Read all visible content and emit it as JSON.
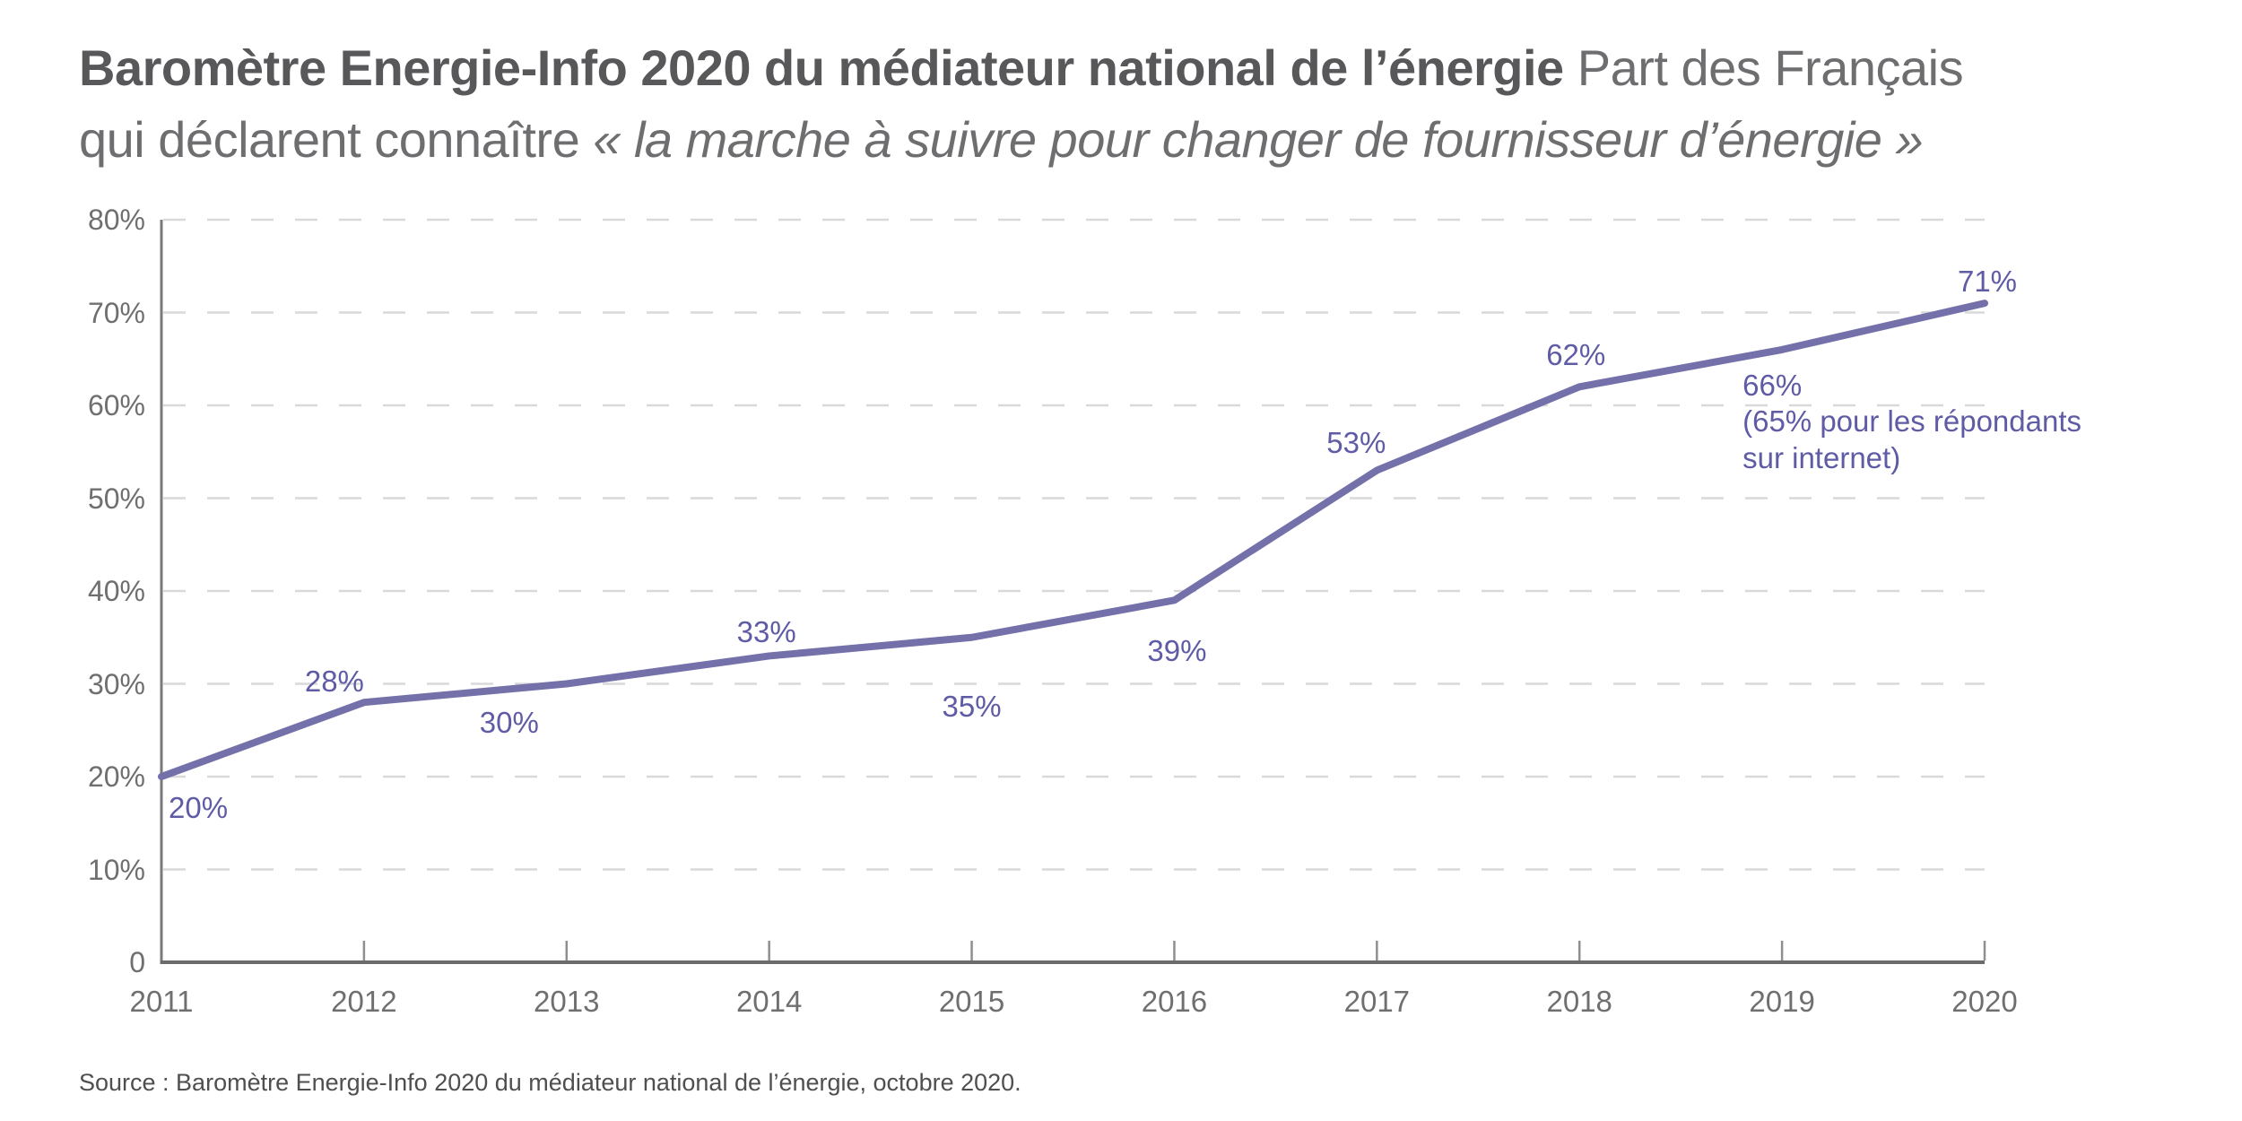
{
  "title": {
    "bold": "Baromètre Energie-Info 2020 du médiateur national de l’énergie",
    "regular_a": "Part des Français",
    "regular_b": "qui déclarent connaître",
    "italic_quote": "« la marche à suivre pour changer de fournisseur d’énergie »"
  },
  "source": "Source : Baromètre Energie-Info 2020 du médiateur national de l’énergie, octobre 2020.",
  "chart_data": {
    "type": "line",
    "x": [
      2011,
      2012,
      2013,
      2014,
      2015,
      2016,
      2017,
      2018,
      2019,
      2020
    ],
    "xlabels": [
      "2011",
      "2012",
      "2013",
      "2014",
      "2015",
      "2016",
      "2017",
      "2018",
      "2019",
      "2020"
    ],
    "values": [
      20,
      28,
      30,
      33,
      35,
      39,
      53,
      62,
      66,
      71
    ],
    "point_labels": [
      "20%",
      "28%",
      "30%",
      "33%",
      "35%",
      "39%",
      "53%",
      "62%",
      "66%",
      "71%"
    ],
    "annotation_2019": "(65% pour les répondants\nsur internet)",
    "ylim": [
      0,
      80
    ],
    "yticks": [
      80,
      70,
      60,
      50,
      40,
      30,
      20,
      10,
      0
    ],
    "ytick_labels": [
      "80%",
      "70%",
      "60%",
      "50%",
      "40%",
      "30%",
      "20%",
      "10%",
      "0"
    ],
    "grid": "horizontal-dashed",
    "legend": "none",
    "colors": {
      "line": "#7470AA",
      "point_labels": "#5F5BA5",
      "axis": "#6B6B6B",
      "y_axis": "#7A7A7C",
      "ticks": "#8F8F8F",
      "grid": "#D9D9D9",
      "tick_labels": "#6F6F6F",
      "title_dark": "#58585A",
      "title_light": "#6E6E70",
      "source_text": "#4F4F4F"
    }
  }
}
